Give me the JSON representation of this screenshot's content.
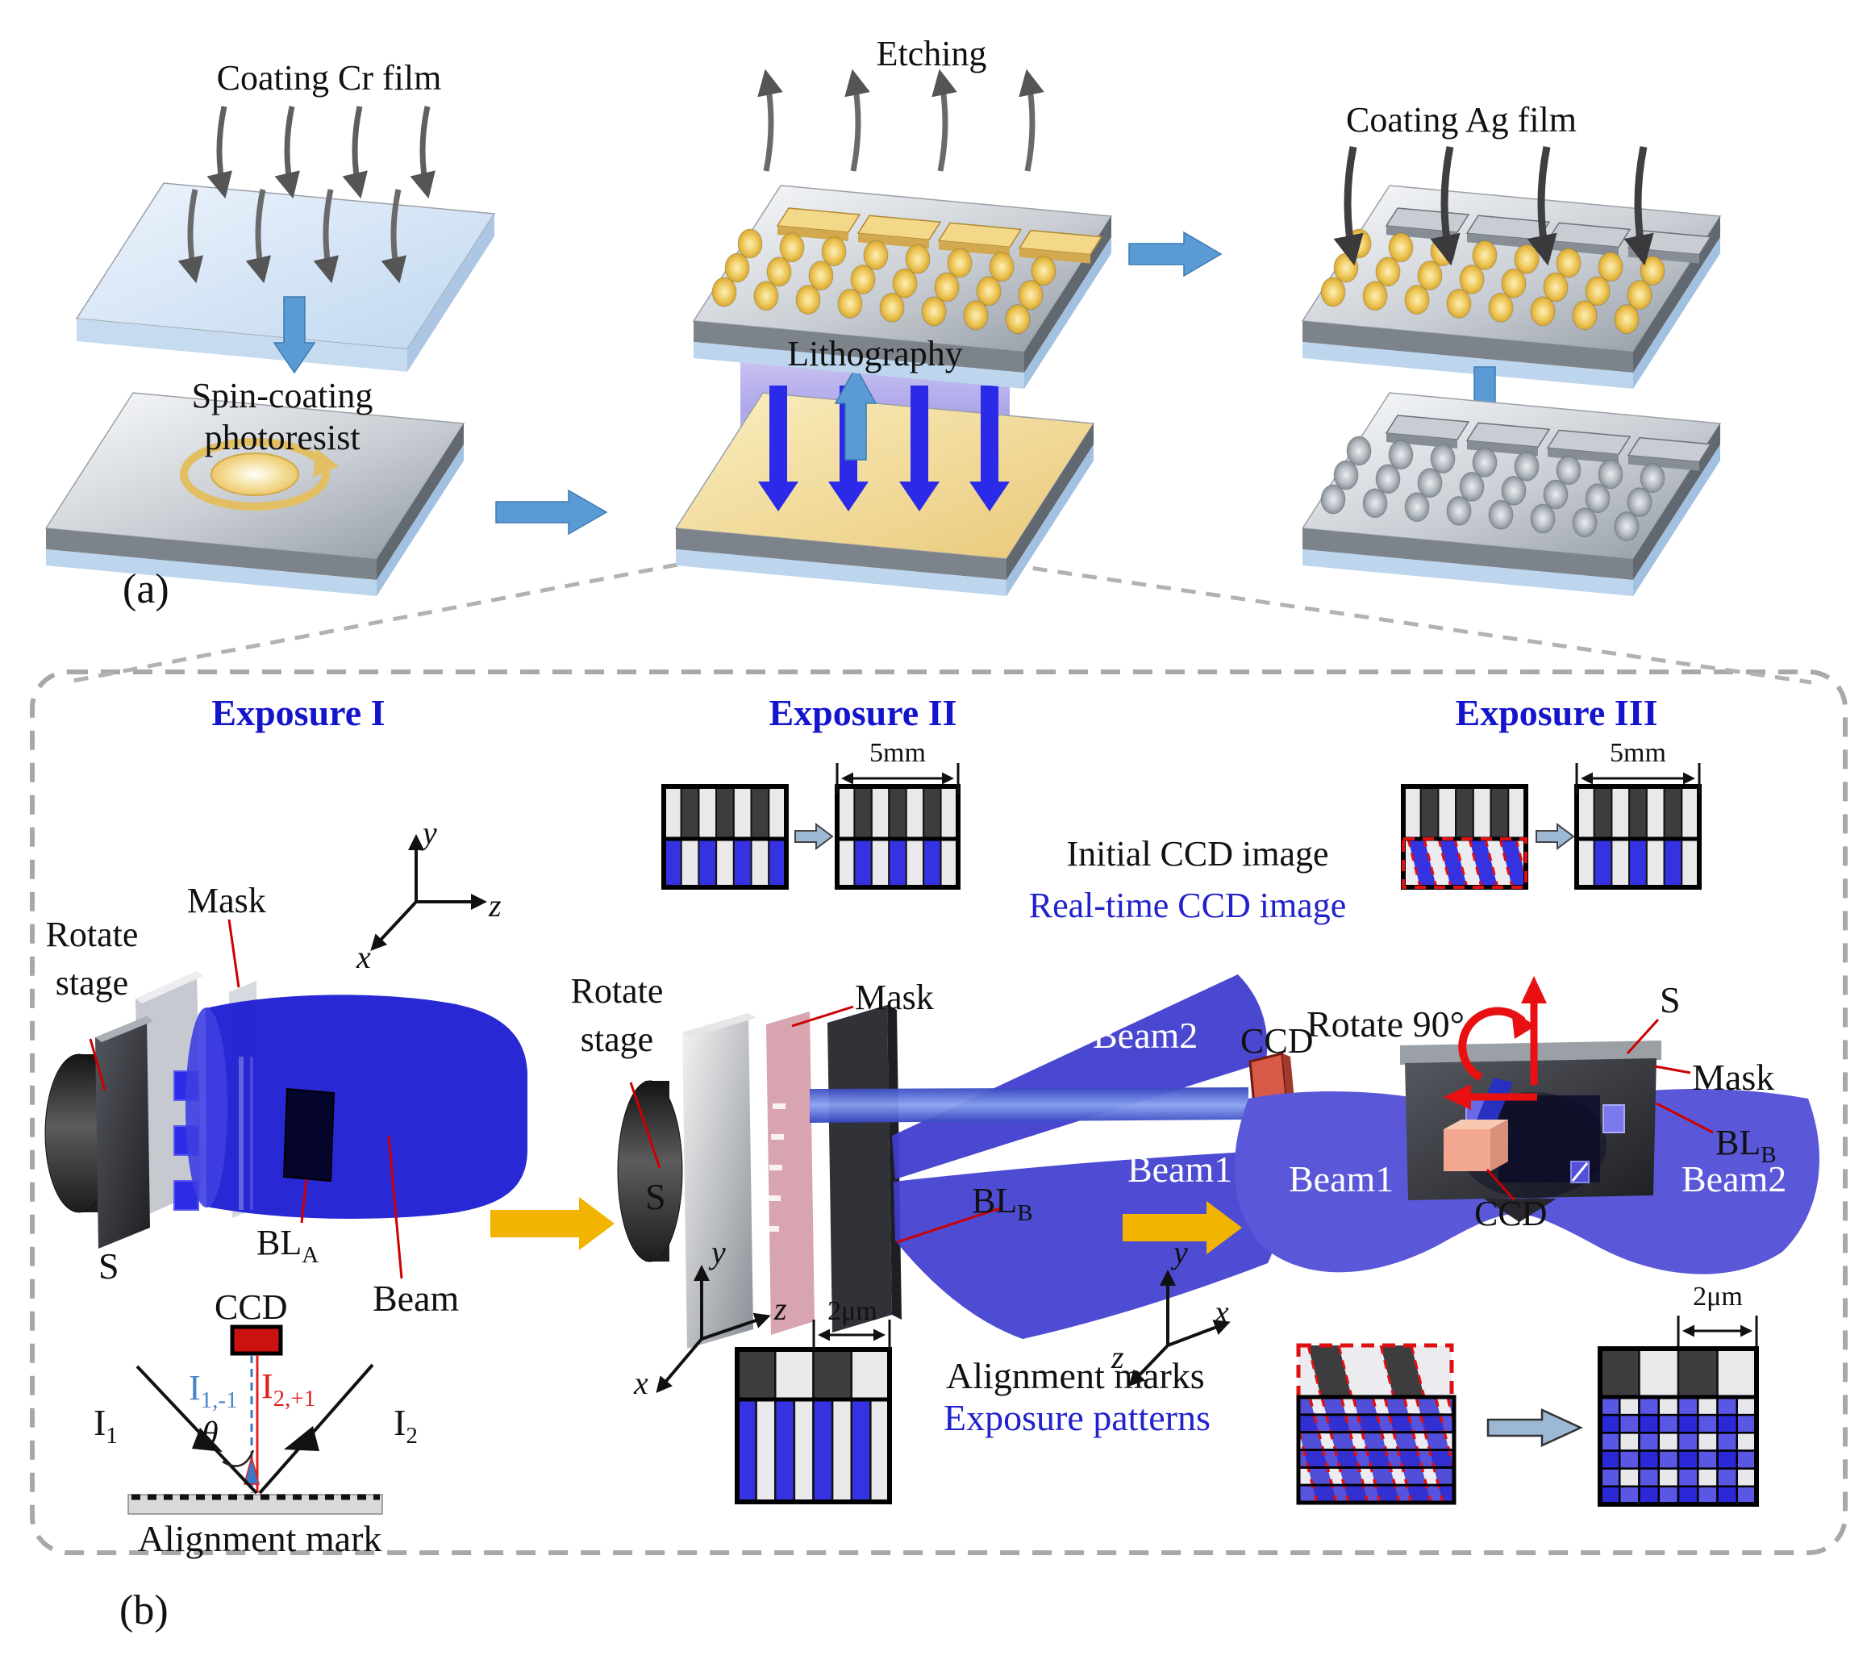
{
  "panel_a": {
    "label": "(a)",
    "steps": {
      "coating_cr": "Coating Cr film",
      "spin_line1": "Spin-coating",
      "spin_line2": "photoresist",
      "lithography": "Lithography",
      "etching": "Etching",
      "coating_ag": "Coating Ag film"
    }
  },
  "panel_b": {
    "label": "(b)",
    "exposure1": {
      "title": "Exposure I",
      "rotate_line1": "Rotate",
      "rotate_line2": "stage",
      "mask": "Mask",
      "substrate": "S",
      "blocker": "BL",
      "blocker_sub": "A",
      "beam": "Beam",
      "ccd": "CCD",
      "axis_x": "x",
      "axis_y": "y",
      "axis_z": "z",
      "beam_i1": "I",
      "beam_i1_sub": "1",
      "beam_i2": "I",
      "beam_i2_sub": "2",
      "diff1": "I",
      "diff1_sub": "1,-1",
      "diff2": "I",
      "diff2_sub": "2,+1",
      "theta": "θ",
      "alignment_mark": "Alignment mark"
    },
    "exposure2": {
      "title": "Exposure II",
      "rotate_line1": "Rotate",
      "rotate_line2": "stage",
      "mask": "Mask",
      "substrate": "S",
      "blocker": "BL",
      "blocker_sub": "B",
      "beam1": "Beam1",
      "beam2": "Beam2",
      "ccd": "CCD",
      "dim_width": "5mm",
      "dim_pitch": "2μm",
      "axis_x": "x",
      "axis_y": "y",
      "axis_z": "z",
      "legend_initial": "Initial CCD image",
      "legend_realtime": "Real-time CCD image"
    },
    "exposure3": {
      "title": "Exposure III",
      "rotate_90": "Rotate 90°",
      "substrate": "S",
      "mask": "Mask",
      "blocker": "BL",
      "blocker_sub": "B",
      "beam1": "Beam1",
      "beam2": "Beam2",
      "ccd": "CCD",
      "dim_width": "5mm",
      "dim_pitch": "2μm",
      "axis_x": "x",
      "axis_y": "y",
      "axis_z": "z",
      "legend_marks": "Alignment marks",
      "legend_patterns": "Exposure patterns"
    }
  },
  "colors": {
    "title_blue": "#1414cc",
    "realtime_blue": "#2222cc",
    "beam_blue": "#2121d4",
    "pattern_blue": "#3532e2",
    "accent_red": "#cc0000",
    "arrow_yellow": "#f2b400",
    "arrow_blue": "#5b9bd5"
  }
}
